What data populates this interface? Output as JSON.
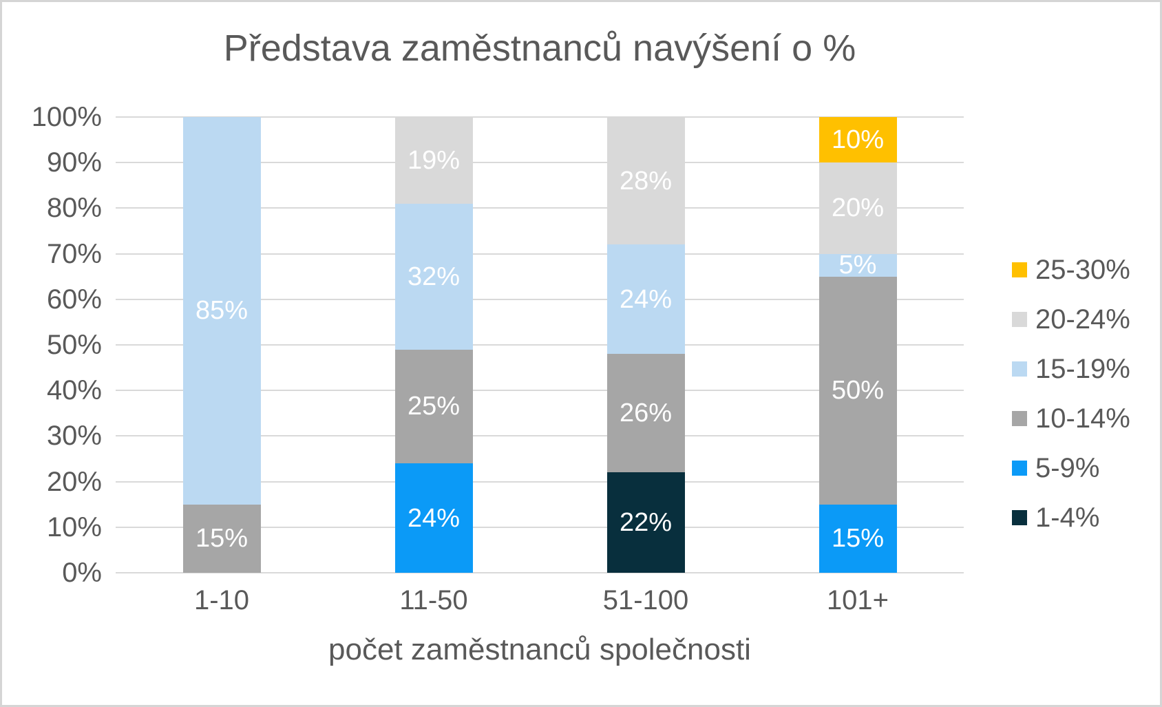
{
  "window": {
    "background_color": "#FFFFFF",
    "border_color": "#D5D5D5"
  },
  "chart_data": {
    "type": "bar",
    "stacked": true,
    "units": "percent",
    "title": "Představa zaměstnanců navýšení o %",
    "xlabel": "počet zaměstnanců společnosti",
    "ylabel": "",
    "categories": [
      "1-10",
      "11-50",
      "51-100",
      "101+"
    ],
    "series": [
      {
        "name": "25-30%",
        "color": "#FFC000",
        "values": [
          0,
          0,
          0,
          10
        ]
      },
      {
        "name": "20-24%",
        "color": "#D9D9D9",
        "values": [
          0,
          19,
          28,
          20
        ]
      },
      {
        "name": "15-19%",
        "color": "#BBD9F2",
        "values": [
          85,
          32,
          24,
          5
        ]
      },
      {
        "name": "10-14%",
        "color": "#A6A6A6",
        "values": [
          15,
          25,
          26,
          50
        ]
      },
      {
        "name": "5-9%",
        "color": "#0B9AF7",
        "values": [
          0,
          24,
          0,
          15
        ]
      },
      {
        "name": "1-4%",
        "color": "#082F3D",
        "values": [
          0,
          0,
          22,
          0
        ]
      }
    ],
    "stack_order_bottom_to_top": [
      "1-4%",
      "5-9%",
      "10-14%",
      "15-19%",
      "20-24%",
      "25-30%"
    ],
    "data_labels": [
      {
        "category": "1-10",
        "labels": [
          "15%",
          "85%"
        ]
      },
      {
        "category": "11-50",
        "labels": [
          "24%",
          "25%",
          "32%",
          "19%"
        ]
      },
      {
        "category": "51-100",
        "labels": [
          "22%",
          "26%",
          "24%",
          "28%"
        ]
      },
      {
        "category": "101+",
        "labels": [
          "15%",
          "50%",
          "5%",
          "20%",
          "10%"
        ]
      }
    ],
    "y_ticks": [
      "0%",
      "10%",
      "20%",
      "30%",
      "40%",
      "50%",
      "60%",
      "70%",
      "80%",
      "90%",
      "100%"
    ],
    "ylim": [
      0,
      100
    ],
    "grid": true,
    "gridline_color": "#D9D9D9",
    "legend_position": "right",
    "legend_entries": [
      "25-30%",
      "20-24%",
      "15-19%",
      "10-14%",
      "5-9%",
      "1-4%"
    ],
    "text_color": "#595959",
    "data_label_color": "#FFFFFF"
  }
}
